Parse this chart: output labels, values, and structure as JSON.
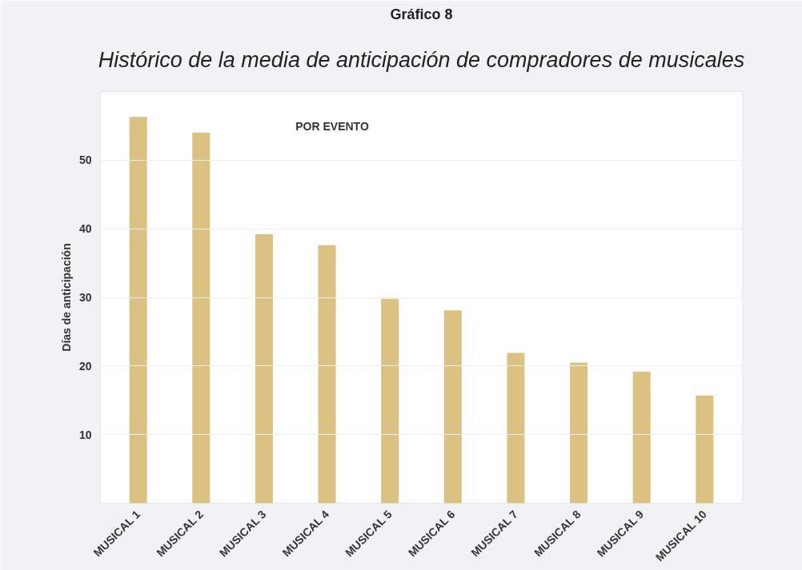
{
  "chart_data": {
    "type": "bar",
    "title": "Gráfico 8",
    "subtitle": "Histórico de la media de anticipación de compradores de musicales",
    "ylabel": "Días de anticipación",
    "annotations": [
      "POR EVENTO"
    ],
    "categories": [
      "MUSICAL 1",
      "MUSICAL 2",
      "MUSICAL 3",
      "MUSICAL 4",
      "MUSICAL 5",
      "MUSICAL 6",
      "MUSICAL 7",
      "MUSICAL 8",
      "MUSICAL 9",
      "MUSICAL 10"
    ],
    "values": [
      56.3,
      54.0,
      39.2,
      37.6,
      29.8,
      28.1,
      21.9,
      20.5,
      19.2,
      15.7
    ],
    "color": "#dcc282",
    "ylim": [
      0,
      60
    ],
    "yticks": [
      10,
      20,
      30,
      40,
      50
    ],
    "grid": "y"
  }
}
